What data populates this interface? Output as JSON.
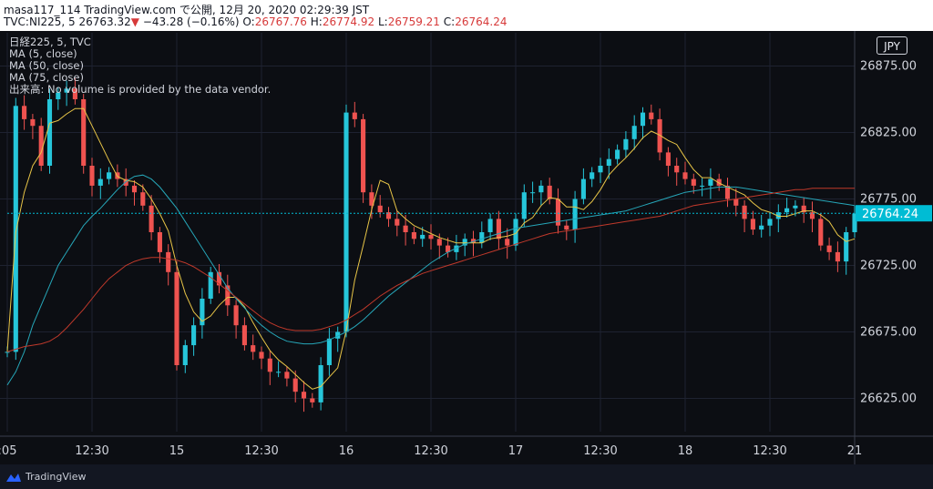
{
  "header": {
    "publisher": "masa117_114 TradingView.com で公開, 12月 20, 2020 02:29:39 JST",
    "symbol": "TVC:NI225, 5",
    "last": "26763.32",
    "change": "−43.28 (−0.16%)",
    "o_label": "O:",
    "o_value": "26767.76",
    "h_label": "H:",
    "h_value": "26774.92",
    "l_label": "L:",
    "l_value": "26759.21",
    "c_label": "C:",
    "c_value": "26764.24"
  },
  "legend": {
    "line1": "日経225, 5, TVC",
    "line2": "MA (5, close)",
    "line3": "MA (50, close)",
    "line4": "MA (75, close)",
    "line5": "出来高: No volume is provided by the data vendor."
  },
  "currency": "JPY",
  "footer": {
    "brand": "TradingView"
  },
  "colors": {
    "up": "#26c6da",
    "down": "#ef5350",
    "ma5": "#e8c547",
    "ma50": "#26a6b8",
    "ma75": "#c0392b",
    "last_price_bg": "#00bcd4"
  },
  "chart_data": {
    "type": "line",
    "ylim": [
      26600,
      26900
    ],
    "y_ticks": [
      26625,
      26675,
      26725,
      26775,
      26825,
      26875
    ],
    "y_tick_labels": [
      "26625.00",
      "26675.00",
      "26725.00",
      "26775.00",
      "26825.00",
      "26875.00"
    ],
    "x_tick_labels": [
      ":05",
      "12:30",
      "15",
      "12:30",
      "16",
      "12:30",
      "17",
      "12:30",
      "18",
      "12:30",
      "21"
    ],
    "x_tick_index": [
      0,
      10,
      20,
      30,
      40,
      50,
      60,
      70,
      80,
      90,
      100
    ],
    "last_price_label": "26764.24",
    "series": [
      {
        "role": "close",
        "values": [
          26660,
          26845,
          26835,
          26830,
          26800,
          26850,
          26855,
          26858,
          26850,
          26800,
          26785,
          26790,
          26795,
          26790,
          26785,
          26780,
          26770,
          26750,
          26735,
          26720,
          26650,
          26665,
          26680,
          26700,
          26720,
          26710,
          26695,
          26680,
          26665,
          26660,
          26655,
          26645,
          26645,
          26640,
          26630,
          26625,
          26622,
          26650,
          26670,
          26675,
          26840,
          26835,
          26780,
          26770,
          26765,
          26760,
          26755,
          26750,
          26745,
          26748,
          26745,
          26740,
          26735,
          26740,
          26745,
          26742,
          26750,
          26760,
          26745,
          26740,
          26760,
          26780,
          26780,
          26785,
          26775,
          26755,
          26752,
          26775,
          26790,
          26795,
          26800,
          26805,
          26812,
          26820,
          26830,
          26840,
          26835,
          26810,
          26800,
          26795,
          26790,
          26785,
          26785,
          26790,
          26785,
          26775,
          26770,
          26760,
          26752,
          26755,
          26760,
          26765,
          26768,
          26770,
          26765,
          26760,
          26740,
          26735,
          26728,
          26750,
          26764
        ]
      },
      {
        "name": "MA (5, close)",
        "values": [
          26660,
          26750,
          26780,
          26800,
          26810,
          26832,
          26834,
          26839,
          26843,
          26843,
          26830,
          26817,
          26804,
          26792,
          26789,
          26788,
          26784,
          26775,
          26764,
          26751,
          26725,
          26704,
          26690,
          26683,
          26687,
          26695,
          26701,
          26701,
          26694,
          26682,
          26671,
          26661,
          26654,
          26649,
          26643,
          26637,
          26632,
          26634,
          26641,
          26648,
          26676,
          26714,
          26740,
          26767,
          26789,
          26786,
          26766,
          26760,
          26755,
          26752,
          26749,
          26746,
          26744,
          26742,
          26742,
          26742,
          26742,
          26745,
          26746,
          26747,
          26749,
          26757,
          26761,
          26770,
          26776,
          26775,
          26769,
          26769,
          26767,
          26773,
          26782,
          26793,
          26800,
          26806,
          26813,
          26821,
          26826,
          26823,
          26819,
          26816,
          26806,
          26797,
          26791,
          26791,
          26787,
          26784,
          26781,
          26778,
          26772,
          26767,
          26765,
          26762,
          26762,
          26764,
          26766,
          26766,
          26763,
          26758,
          26748,
          26743,
          26745
        ]
      },
      {
        "name": "MA (50, close)",
        "values": [
          26635,
          26645,
          26660,
          26680,
          26695,
          26710,
          26725,
          26735,
          26745,
          26755,
          26762,
          26768,
          26775,
          26782,
          26788,
          26792,
          26793,
          26790,
          26784,
          26776,
          26768,
          26758,
          26748,
          26738,
          26728,
          26718,
          26708,
          26700,
          26693,
          26686,
          26680,
          26675,
          26671,
          26668,
          26667,
          26666,
          26666,
          26667,
          26669,
          26672,
          26675,
          26679,
          26684,
          26690,
          26696,
          26702,
          26707,
          26712,
          26717,
          26722,
          26727,
          26731,
          26735,
          26738,
          26741,
          26743,
          26745,
          26747,
          26749,
          26751,
          26753,
          26754,
          26755,
          26756,
          26757,
          26758,
          26759,
          26760,
          26761,
          26762,
          26763,
          26764,
          26765,
          26766,
          26768,
          26770,
          26772,
          26774,
          26776,
          26778,
          26780,
          26781,
          26782,
          26783,
          26784,
          26784,
          26784,
          26783,
          26782,
          26781,
          26780,
          26779,
          26778,
          26777,
          26776,
          26775,
          26774,
          26773,
          26772,
          26771,
          26770
        ]
      },
      {
        "name": "MA (75, close)",
        "values": [
          26660,
          26662,
          26664,
          26665,
          26666,
          26668,
          26672,
          26678,
          26685,
          26692,
          26700,
          26708,
          26715,
          26720,
          26725,
          26728,
          26730,
          26731,
          26731,
          26730,
          26729,
          26727,
          26724,
          26720,
          26716,
          26711,
          26706,
          26701,
          26696,
          26691,
          26686,
          26682,
          26679,
          26677,
          26676,
          26676,
          26676,
          26677,
          26679,
          26681,
          26684,
          26688,
          26692,
          26697,
          26702,
          26706,
          26710,
          26713,
          26716,
          26719,
          26721,
          26723,
          26725,
          26727,
          26729,
          26731,
          26733,
          26735,
          26737,
          26739,
          26741,
          26743,
          26745,
          26747,
          26749,
          26750,
          26751,
          26752,
          26753,
          26754,
          26755,
          26756,
          26757,
          26758,
          26759,
          26760,
          26761,
          26762,
          26764,
          26766,
          26768,
          26770,
          26771,
          26772,
          26773,
          26774,
          26775,
          26776,
          26777,
          26778,
          26779,
          26780,
          26781,
          26782,
          26782,
          26783,
          26783,
          26783,
          26783,
          26783,
          26783
        ]
      }
    ]
  }
}
